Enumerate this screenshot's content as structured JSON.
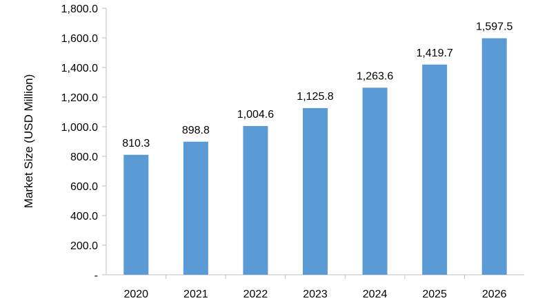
{
  "chart_data": {
    "type": "bar",
    "categories": [
      "2020",
      "2021",
      "2022",
      "2023",
      "2024",
      "2025",
      "2026"
    ],
    "values": [
      810.3,
      898.8,
      1004.6,
      1125.8,
      1263.6,
      1419.7,
      1597.5
    ],
    "value_labels": [
      "810.3",
      "898.8",
      "1,004.6",
      "1,125.8",
      "1,263.6",
      "1,419.7",
      "1,597.5"
    ],
    "title": "",
    "xlabel": "",
    "ylabel": "Market Size (USD Million)",
    "ylim": [
      0,
      1800
    ],
    "yticks": [
      0,
      200,
      400,
      600,
      800,
      1000,
      1200,
      1400,
      1600,
      1800
    ],
    "ytick_labels": [
      "-",
      "200.0",
      "400.0",
      "600.0",
      "800.0",
      "1,000.0",
      "1,200.0",
      "1,400.0",
      "1,600.0",
      "1,800.0"
    ],
    "grid": false,
    "legend": "none",
    "bar_color": "#5b9bd5"
  }
}
